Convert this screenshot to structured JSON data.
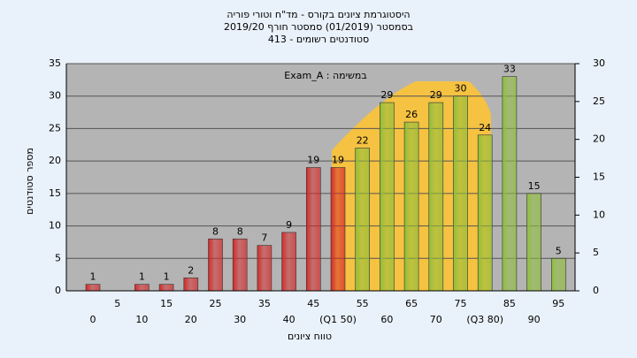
{
  "chart_data": {
    "type": "bar",
    "title": [
      "היסטוגרמת ציונים בקורס - מד\"ח וטורי פוריה",
      "בסמסטר (01/2019) סמסטר חורף 2019/20",
      "סטודנטים רשומים - 413"
    ],
    "legend_text": "במשימה : Exam_A",
    "ylabel": "מספר סטודנטים",
    "xlabel": "טווח ציונים",
    "categories": [
      "0",
      "5",
      "10",
      "15",
      "20",
      "25",
      "30",
      "35",
      "40",
      "45",
      "(Q1 50)",
      "55",
      "60",
      "65",
      "70",
      "75",
      "(Q3 80)",
      "85",
      "90",
      "95"
    ],
    "values": [
      1,
      0,
      1,
      1,
      2,
      8,
      8,
      7,
      9,
      19,
      19,
      22,
      29,
      26,
      29,
      30,
      24,
      33,
      15,
      5
    ],
    "value_labels": [
      "1",
      null,
      "1",
      "1",
      "2",
      "8",
      "8",
      "7",
      "9",
      "19",
      "19",
      "22",
      "29",
      "26",
      "29",
      "30",
      "24",
      "33",
      "15",
      "5"
    ],
    "colors": [
      "#d42a2a",
      "#d42a2a",
      "#d42a2a",
      "#d42a2a",
      "#d42a2a",
      "#d42a2a",
      "#d42a2a",
      "#d42a2a",
      "#d42a2a",
      "#d42a2a",
      "#d42a2a",
      "#8fbf3a",
      "#8fbf3a",
      "#8fbf3a",
      "#8fbf3a",
      "#8fbf3a",
      "#8fbf3a",
      "#8fbf3a",
      "#8fbf3a",
      "#8fbf3a"
    ],
    "ylim": [
      0,
      35
    ],
    "yticks": [
      0,
      5,
      10,
      15,
      20,
      25,
      30,
      35
    ],
    "y2lim": [
      0,
      30
    ],
    "y2ticks": [
      0,
      5,
      10,
      15,
      20,
      25,
      30
    ],
    "grid": true
  }
}
